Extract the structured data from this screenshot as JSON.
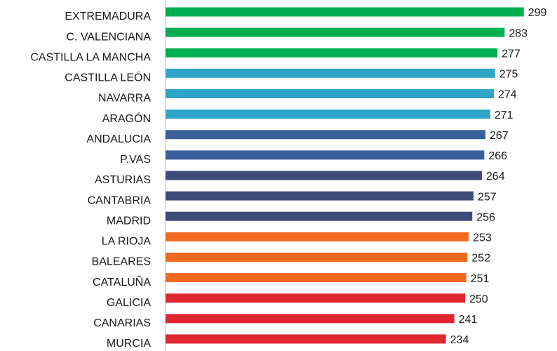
{
  "chart_data": {
    "type": "hbar",
    "categories": [
      "EXTREMADURA",
      "C. VALENCIANA",
      "CASTILLA LA MANCHA",
      "CASTILLA LEÓN",
      "NAVARRA",
      "ARAGÓN",
      "ANDALUCIA",
      "P.VAS",
      "ASTURIAS",
      "CANTABRIA",
      "MADRID",
      "LA RIOJA",
      "BALEARES",
      "CATALUÑA",
      "GALICIA",
      "CANARIAS",
      "MURCIA"
    ],
    "values": [
      299,
      283,
      277,
      275,
      274,
      271,
      267,
      266,
      264,
      257,
      256,
      253,
      252,
      251,
      250,
      241,
      234
    ],
    "colors": [
      "#00b050",
      "#00b050",
      "#00b050",
      "#2ea5c6",
      "#2ea5c6",
      "#2ea5c6",
      "#3b5f9b",
      "#3b5f9b",
      "#404a7a",
      "#404a7a",
      "#404a7a",
      "#f06a22",
      "#f06a22",
      "#f06a22",
      "#e0252f",
      "#e0252f",
      "#e0252f"
    ],
    "xlim": [
      0,
      320
    ]
  }
}
